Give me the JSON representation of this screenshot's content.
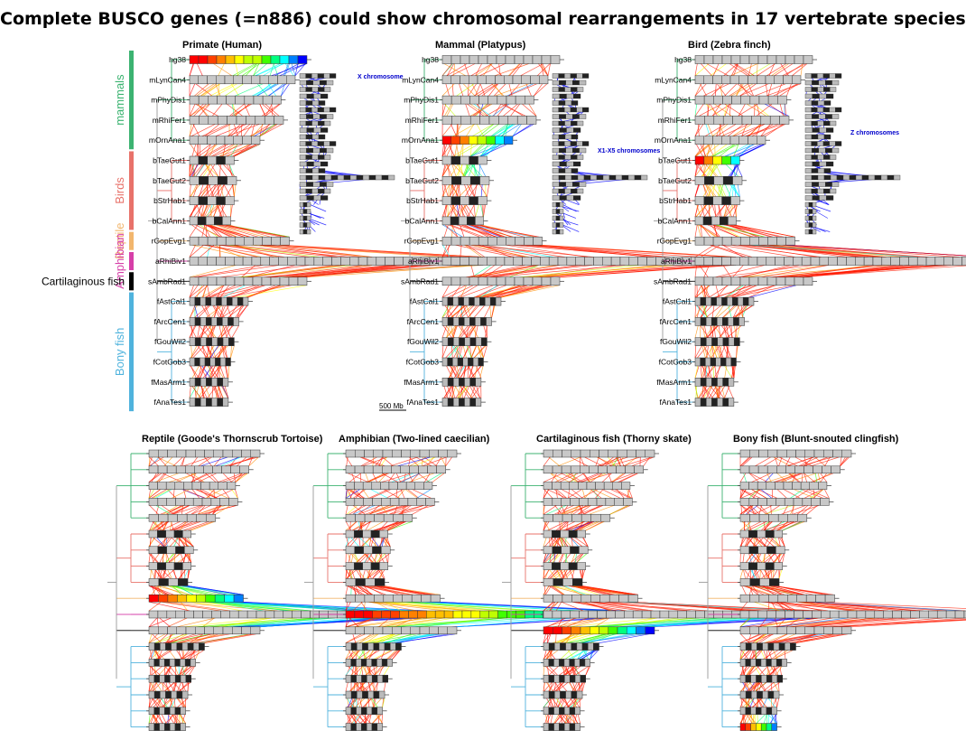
{
  "title": "Complete BUSCO genes (=n886) could show chromosomal rearrangements in 17 vertebrate species",
  "species": [
    "hg38",
    "mLynCan4",
    "mPhyDis1",
    "mRhiFer1",
    "mOrnAna1",
    "bTaeGut1",
    "bTaeGut2",
    "bStrHab1",
    "bCalAnn1",
    "rGopEvg1",
    "aRhiBiv1",
    "sAmbRad1",
    "fAstCal1",
    "fArcCen1",
    "fGouWil2",
    "fCotGob3",
    "fMasArm1",
    "fAnaTes1"
  ],
  "groups": [
    {
      "name": "mammals",
      "color": "#3cb371",
      "span": [
        0,
        4
      ]
    },
    {
      "name": "Birds",
      "color": "#e8726a",
      "span": [
        5,
        8
      ]
    },
    {
      "name": "Reptile",
      "color": "#f2b66d",
      "span": [
        9,
        9
      ]
    },
    {
      "name": "Amphibian",
      "color": "#d63fa8",
      "span": [
        10,
        10
      ]
    },
    {
      "name": "Cartilaginous fish",
      "color": "#000000",
      "span": [
        11,
        11
      ]
    },
    {
      "name": "Bony fish",
      "color": "#4fb3dd",
      "span": [
        12,
        17
      ]
    }
  ],
  "genome_bar_lengths": [
    1.0,
    0.9,
    0.78,
    0.8,
    0.6,
    0.38,
    0.4,
    0.38,
    0.35,
    0.85,
    2.5,
    1.0,
    0.5,
    0.42,
    0.38,
    0.35,
    0.33,
    0.33
  ],
  "scale_bar": {
    "label": "500 Mb"
  },
  "panels": [
    {
      "title": "Primate (Human)",
      "ref": 0,
      "inset": {
        "label": "X chromosome",
        "hl": 0
      }
    },
    {
      "title": "Mammal (Platypus)",
      "ref": 4,
      "inset": {
        "label": "X1-X5 chromosomes",
        "hl": 2
      }
    },
    {
      "title": "Bird (Zebra finch)",
      "ref": 5,
      "inset": {
        "label": "Z chromosomes",
        "hl": 1
      }
    },
    {
      "title": "Reptile (Goode's Thornscrub Tortoise)",
      "ref": 9
    },
    {
      "title": "Amphibian (Two-lined caecilian)",
      "ref": 10
    },
    {
      "title": "Cartilaginous fish (Thorny skate)",
      "ref": 11
    },
    {
      "title": "Bony fish (Blunt-snouted clingfish)",
      "ref": 17
    }
  ]
}
